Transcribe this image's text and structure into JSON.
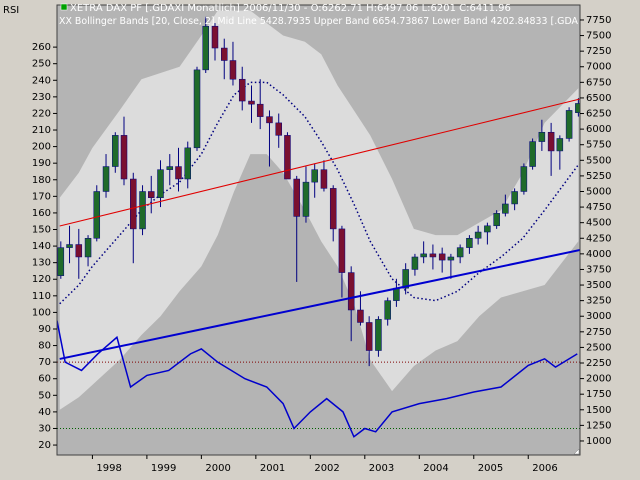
{
  "chart_data": {
    "type": "candlestick",
    "axis_label_left": "RSI",
    "legend_main": "XETRA DAX PF [.GDAXI  Monatlich] 2006/11/30 - O:6262.71 H:6497.06 L:6201 C:6411.96",
    "legend_bands": "XX Bollinger Bands [20, Close, 2] Mid Line 5428.7935 Upper Band 6654.73867 Lower Band 4202.84833 [.GDA",
    "xlim": [
      1997.35,
      2006.95
    ],
    "xticks": [
      1998,
      1999,
      2000,
      2001,
      2002,
      2003,
      2004,
      2005,
      2006
    ],
    "ylim": [
      775,
      7990
    ],
    "yticks": [
      1000,
      1250,
      1500,
      1750,
      2000,
      2250,
      2500,
      2750,
      3000,
      3250,
      3500,
      3750,
      4000,
      4250,
      4500,
      4750,
      5000,
      5250,
      5500,
      5750,
      6000,
      6250,
      6500,
      6750,
      7000,
      7250,
      7500,
      7750
    ],
    "y2lim": [
      14,
      285.4
    ],
    "y2ticks": [
      20,
      30,
      40,
      50,
      60,
      70,
      80,
      90,
      100,
      110,
      120,
      130,
      140,
      150,
      160,
      170,
      180,
      190,
      200,
      210,
      220,
      230,
      240,
      250,
      260
    ],
    "plot_color": "#b4b4b4",
    "candles": {
      "up_color": "#1f6b2a",
      "down_color": "#7a1030",
      "wick_color": "#000080",
      "x": [
        1997.42,
        1997.58,
        1997.75,
        1997.92,
        1998.08,
        1998.25,
        1998.42,
        1998.58,
        1998.75,
        1998.92,
        1999.08,
        1999.25,
        1999.42,
        1999.58,
        1999.75,
        1999.92,
        2000.08,
        2000.25,
        2000.42,
        2000.58,
        2000.75,
        2000.92,
        2001.08,
        2001.25,
        2001.42,
        2001.58,
        2001.75,
        2001.92,
        2002.08,
        2002.25,
        2002.42,
        2002.58,
        2002.75,
        2002.92,
        2003.08,
        2003.25,
        2003.42,
        2003.58,
        2003.75,
        2003.92,
        2004.08,
        2004.25,
        2004.42,
        2004.58,
        2004.75,
        2004.92,
        2005.08,
        2005.25,
        2005.42,
        2005.58,
        2005.75,
        2005.92,
        2006.08,
        2006.25,
        2006.42,
        2006.58,
        2006.75,
        2006.92
      ],
      "open": [
        3650,
        4100,
        4150,
        3950,
        4250,
        5000,
        5400,
        5900,
        5200,
        4400,
        5000,
        4900,
        5350,
        5400,
        5200,
        5700,
        6950,
        7650,
        7300,
        7100,
        6800,
        6450,
        6400,
        6200,
        6100,
        5900,
        5200,
        4600,
        5150,
        5350,
        5050,
        4400,
        3700,
        3100,
        2900,
        2450,
        2950,
        3250,
        3450,
        3750,
        3950,
        4000,
        4000,
        3900,
        3950,
        4100,
        4250,
        4350,
        4450,
        4650,
        4800,
        5000,
        5400,
        5800,
        5950,
        5650,
        5850,
        6262.71
      ],
      "high": [
        4200,
        4450,
        4400,
        4300,
        5100,
        5600,
        5950,
        6200,
        5300,
        5100,
        5250,
        5500,
        5600,
        5700,
        5800,
        7000,
        7800,
        7700,
        7450,
        7400,
        7000,
        6700,
        6800,
        6300,
        6250,
        5950,
        5250,
        5400,
        5450,
        5500,
        5100,
        4450,
        3800,
        3400,
        3000,
        3000,
        3300,
        3600,
        3850,
        4000,
        4200,
        4150,
        4100,
        4000,
        4150,
        4300,
        4450,
        4500,
        4700,
        4950,
        5050,
        5450,
        5850,
        6150,
        6100,
        5900,
        6350,
        6497.06
      ],
      "low": [
        3600,
        3850,
        3600,
        3800,
        4200,
        4900,
        5300,
        5100,
        3850,
        4300,
        4650,
        4750,
        5100,
        5000,
        5050,
        5650,
        6900,
        7100,
        6800,
        6700,
        6300,
        6100,
        6000,
        5400,
        5700,
        5200,
        3550,
        4500,
        4900,
        5000,
        4200,
        3300,
        2600,
        2850,
        2200,
        2350,
        2850,
        3150,
        3350,
        3650,
        3850,
        3750,
        3700,
        3600,
        3850,
        4000,
        4150,
        4150,
        4400,
        4600,
        4700,
        4950,
        5350,
        5650,
        5250,
        5350,
        5800,
        6201
      ],
      "close": [
        4100,
        4150,
        3950,
        4250,
        5000,
        5400,
        5900,
        5200,
        4400,
        5000,
        4900,
        5350,
        5400,
        5200,
        5700,
        6950,
        7650,
        7300,
        7100,
        6800,
        6450,
        6400,
        6200,
        6100,
        5900,
        5200,
        4600,
        5150,
        5350,
        5050,
        4400,
        3700,
        3100,
        2900,
        2450,
        2950,
        3250,
        3450,
        3750,
        3950,
        4000,
        3950,
        3900,
        3950,
        4100,
        4250,
        4350,
        4450,
        4650,
        4800,
        5000,
        5400,
        5800,
        5950,
        5650,
        5850,
        6300,
        6411.96
      ]
    },
    "bands": {
      "fill": "#dcdcdc",
      "mid_color": "#000080",
      "x": [
        1997.4,
        1997.75,
        1998.0,
        1998.5,
        1998.9,
        1999.25,
        1999.6,
        2000.0,
        2000.3,
        2000.6,
        2000.9,
        2001.2,
        2001.5,
        2001.9,
        2002.2,
        2002.5,
        2002.8,
        2003.1,
        2003.5,
        2003.9,
        2004.3,
        2004.7,
        2005.1,
        2005.5,
        2005.9,
        2006.3,
        2006.92
      ],
      "mid": [
        3200,
        3500,
        3800,
        4300,
        4700,
        4950,
        5150,
        5600,
        6100,
        6550,
        6750,
        6750,
        6550,
        6200,
        5800,
        5350,
        4800,
        4200,
        3600,
        3300,
        3250,
        3400,
        3700,
        3950,
        4250,
        4700,
        5428.7935
      ],
      "upper": [
        4900,
        5300,
        5700,
        6300,
        6800,
        6900,
        7000,
        7500,
        7900,
        7900,
        7900,
        7700,
        7500,
        7400,
        7200,
        6700,
        6300,
        5900,
        5200,
        4400,
        4300,
        4300,
        4500,
        4700,
        5300,
        6100,
        6654.73867
      ],
      "lower": [
        1500,
        1700,
        1900,
        2300,
        2700,
        3000,
        3400,
        3800,
        4300,
        5000,
        5600,
        5600,
        5300,
        4700,
        4200,
        3800,
        3200,
        2300,
        1800,
        2200,
        2450,
        2600,
        3000,
        3300,
        3400,
        3500,
        4202.84833
      ]
    },
    "trendlines": [
      {
        "color": "#e00000",
        "x": [
          1997.4,
          2006.95
        ],
        "values": [
          4447,
          6483
        ]
      },
      {
        "color": "#0000d0",
        "x": [
          1997.4,
          2006.95
        ],
        "values": [
          2315,
          4062
        ]
      }
    ],
    "rsi": {
      "color": "#0000cc",
      "x": [
        1997.35,
        1997.5,
        1997.8,
        1998.1,
        1998.45,
        1998.7,
        1999.0,
        1999.4,
        1999.8,
        2000.0,
        2000.3,
        2000.8,
        2001.2,
        2001.5,
        2001.7,
        2002.0,
        2002.3,
        2002.6,
        2002.8,
        2003.0,
        2003.2,
        2003.5,
        2004.0,
        2004.5,
        2005.0,
        2005.5,
        2006.0,
        2006.3,
        2006.5,
        2006.9
      ],
      "values": [
        95,
        70,
        65,
        75,
        85,
        55,
        62,
        65,
        75,
        78,
        70,
        60,
        55,
        45,
        30,
        40,
        48,
        40,
        25,
        30,
        28,
        40,
        45,
        48,
        52,
        55,
        68,
        72,
        67,
        75
      ]
    },
    "rsi_levels": [
      {
        "value": 70,
        "color": "#800000"
      },
      {
        "value": 30,
        "color": "#006000"
      }
    ]
  }
}
